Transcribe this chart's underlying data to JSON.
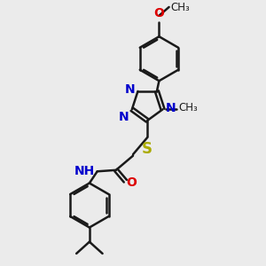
{
  "bg_color": "#ebebeb",
  "bond_color": "#1a1a1a",
  "N_color": "#0000cc",
  "O_color": "#dd0000",
  "S_color": "#aaaa00",
  "line_width": 1.8,
  "dbo": 0.07,
  "font_size": 10,
  "font_size_small": 8.5,
  "xlim": [
    0,
    10
  ],
  "ylim": [
    0,
    10
  ]
}
